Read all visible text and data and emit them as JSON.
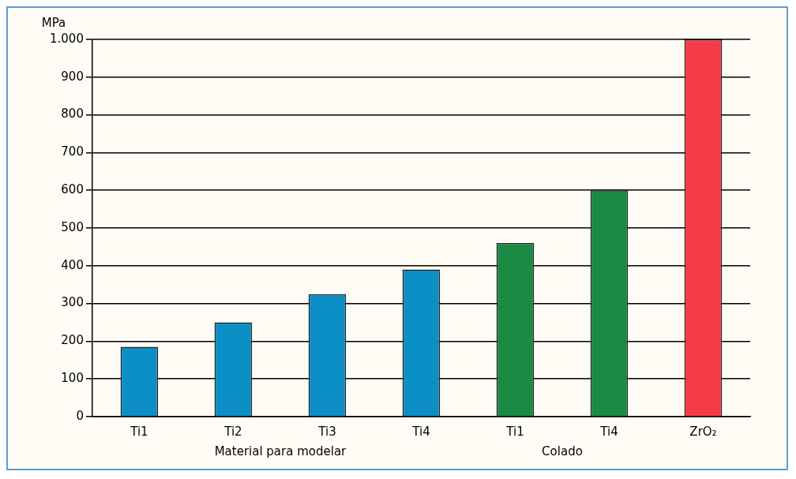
{
  "chart_data": {
    "type": "bar",
    "ylabel": "MPa",
    "categories": [
      "Ti1",
      "Ti2",
      "Ti3",
      "Ti4",
      "Ti1",
      "Ti4",
      "ZrO₂"
    ],
    "values": [
      185,
      250,
      325,
      390,
      460,
      600,
      1000
    ],
    "colors": [
      "#0b8fc4",
      "#0b8fc4",
      "#0b8fc4",
      "#0b8fc4",
      "#1a8a45",
      "#1a8a45",
      "#f53b47"
    ],
    "ylim": [
      0,
      1000
    ],
    "yticks": [
      0,
      100,
      200,
      300,
      400,
      500,
      600,
      700,
      800,
      900,
      {
        "value": 1000,
        "label": "1.000"
      }
    ],
    "grid": "y",
    "annotations": [
      "Material para modelar",
      "Colado"
    ]
  }
}
